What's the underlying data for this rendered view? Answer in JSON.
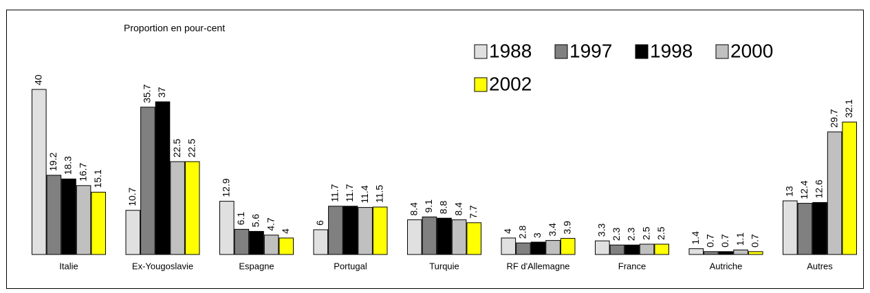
{
  "chart_data": {
    "type": "bar",
    "subtitle": "Proportion en pour-cent",
    "categories": [
      "Italie",
      "Ex-Yougoslavie",
      "Espagne",
      "Portugal",
      "Turquie",
      "RF d'Allemagne",
      "France",
      "Autriche",
      "Autres"
    ],
    "series": [
      {
        "name": "1988",
        "color": "#e0e0e0",
        "values": [
          40,
          10.7,
          12.9,
          6,
          8.4,
          4,
          3.3,
          1.4,
          13
        ]
      },
      {
        "name": "1997",
        "color": "#808080",
        "values": [
          19.2,
          35.7,
          6.1,
          11.7,
          9.1,
          2.8,
          2.3,
          0.7,
          12.4
        ]
      },
      {
        "name": "1998",
        "color": "#000000",
        "values": [
          18.3,
          37,
          5.6,
          11.7,
          8.8,
          3,
          2.3,
          0.7,
          12.6
        ]
      },
      {
        "name": "2000",
        "color": "#c0c0c0",
        "values": [
          16.7,
          22.5,
          4.7,
          11.4,
          8.4,
          3.4,
          2.5,
          1.1,
          29.7
        ]
      },
      {
        "name": "2002",
        "color": "#ffff00",
        "values": [
          15.1,
          22.5,
          4,
          11.5,
          7.7,
          3.9,
          2.5,
          0.7,
          32.1
        ]
      }
    ]
  }
}
